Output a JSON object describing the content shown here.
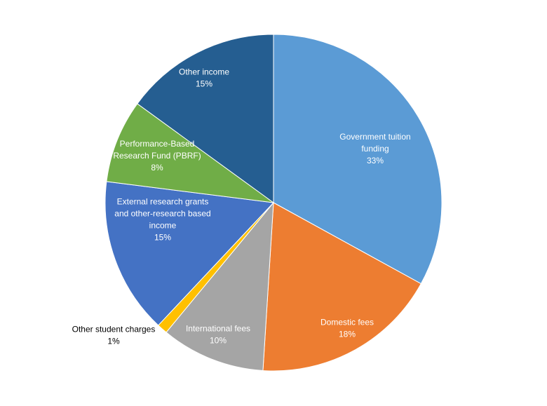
{
  "chart_data": {
    "type": "pie",
    "title": "",
    "start_angle_deg": 0,
    "direction": "clockwise",
    "slices": [
      {
        "label_lines": [
          "Government tuition",
          "funding"
        ],
        "value": 33,
        "value_label": "33%",
        "color": "#5b9bd5",
        "label_position": "inside"
      },
      {
        "label_lines": [
          "Domestic fees"
        ],
        "value": 18,
        "value_label": "18%",
        "color": "#ed7d31",
        "label_position": "inside"
      },
      {
        "label_lines": [
          "International fees"
        ],
        "value": 10,
        "value_label": "10%",
        "color": "#a5a5a5",
        "label_position": "inside"
      },
      {
        "label_lines": [
          "Other student charges"
        ],
        "value": 1,
        "value_label": "1%",
        "color": "#ffc000",
        "label_position": "outside"
      },
      {
        "label_lines": [
          "External research grants",
          "and other-research based",
          "income"
        ],
        "value": 15,
        "value_label": "15%",
        "color": "#4472c4",
        "label_position": "inside"
      },
      {
        "label_lines": [
          "Performance-Based",
          "Research Fund (PBRF)"
        ],
        "value": 8,
        "value_label": "8%",
        "color": "#70ad47",
        "label_position": "inside"
      },
      {
        "label_lines": [
          "Other income"
        ],
        "value": 15,
        "value_label": "15%",
        "color": "#255e91",
        "label_position": "inside"
      }
    ]
  }
}
